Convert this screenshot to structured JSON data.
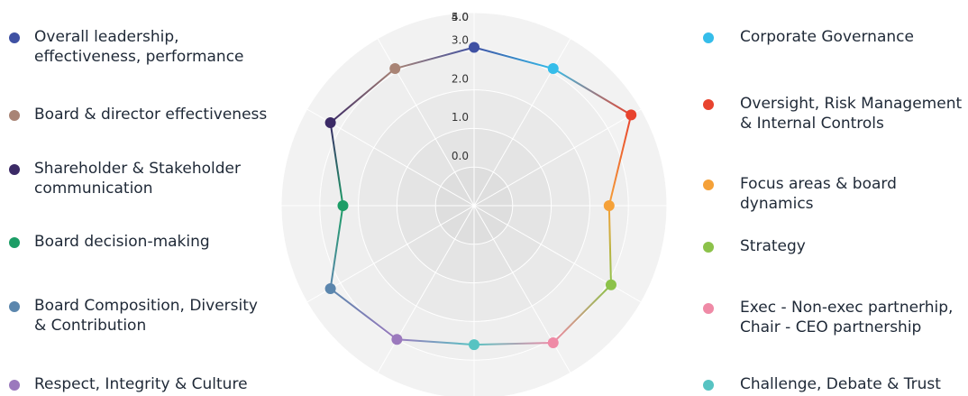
{
  "chart_data": {
    "type": "radar",
    "radial_ticks": [
      "0.0",
      "1.0",
      "2.0",
      "3.0",
      "4.0",
      "5.0"
    ],
    "rlim": [
      0,
      5
    ],
    "axes": [
      {
        "label": "Overall leadership,\neffectiveness, performance",
        "value": 4.1,
        "color": "#3f51a3"
      },
      {
        "label": "Corporate Governance",
        "value": 4.1,
        "color": "#35bdea"
      },
      {
        "label": "Oversight, Risk Management\n& Internal Controls",
        "value": 4.7,
        "color": "#e8432e"
      },
      {
        "label": "Focus areas & board dynamics",
        "value": 3.5,
        "color": "#f5a138"
      },
      {
        "label": "Strategy",
        "value": 4.1,
        "color": "#8cc24a"
      },
      {
        "label": "Exec - Non-exec partnerhip,\nChair - CEO partnership",
        "value": 4.1,
        "color": "#ef8aa6"
      },
      {
        "label": "Challenge, Debate & Trust",
        "value": 3.6,
        "color": "#57c3c2"
      },
      {
        "label": "Respect, Integrity & Culture",
        "value": 4.0,
        "color": "#9b79bd"
      },
      {
        "label": "Board Composition, Diversity\n& Contribution",
        "value": 4.3,
        "color": "#5b86ad"
      },
      {
        "label": "Board decision-making",
        "value": 3.4,
        "color": "#1c9d66"
      },
      {
        "label": "Shareholder & Stakeholder\ncommunication",
        "value": 4.3,
        "color": "#3b2a66"
      },
      {
        "label": "Board & director effectiveness",
        "value": 4.1,
        "color": "#a98475"
      }
    ],
    "legend_left": [
      0,
      7,
      8,
      9,
      10,
      11
    ],
    "legend_right": [
      1,
      2,
      3,
      4,
      5,
      6
    ],
    "legend_left_order": [
      0,
      11,
      10,
      9,
      8,
      7
    ],
    "legend_right_order": [
      1,
      2,
      3,
      4,
      5,
      6
    ],
    "grid": true,
    "band_colors": [
      "#dedede",
      "#e4e4e4",
      "#e9e9e9",
      "#eeeeee",
      "#f2f2f2"
    ]
  }
}
